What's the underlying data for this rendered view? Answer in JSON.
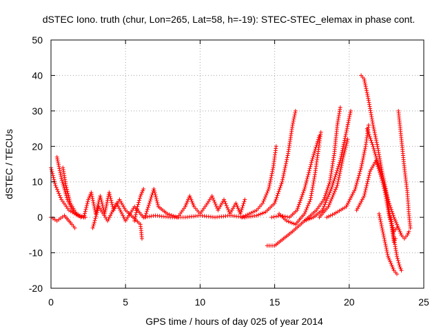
{
  "chart_data": {
    "type": "scatter",
    "title": "dSTEC Iono. truth (chur, Lon=265, Lat=58, h=-19): STEC-STEC_elemax in phase cont.",
    "xlabel": "GPS time / hours of day 025 of year 2014",
    "ylabel": "dSTEC  / TECUs",
    "xlim": [
      0,
      25
    ],
    "ylim": [
      -20,
      50
    ],
    "xticks": [
      "0",
      "5",
      "10",
      "15",
      "20",
      "25"
    ],
    "yticks": [
      "-20",
      "-10",
      "0",
      "10",
      "20",
      "30",
      "40",
      "50"
    ],
    "grid": true,
    "marker": "+",
    "colors": {
      "series": "#ff0000",
      "grid": "#a0a0a0",
      "axis": "#000000"
    },
    "arcs": [
      {
        "points": [
          [
            0.0,
            14
          ],
          [
            0.3,
            9
          ],
          [
            0.7,
            5
          ],
          [
            1.2,
            2
          ],
          [
            1.8,
            0.5
          ],
          [
            2.3,
            0
          ]
        ]
      },
      {
        "points": [
          [
            0.4,
            17
          ],
          [
            0.7,
            11
          ],
          [
            1.1,
            5
          ],
          [
            1.5,
            1.5
          ],
          [
            2.0,
            0
          ]
        ]
      },
      {
        "points": [
          [
            0.8,
            14
          ],
          [
            1.0,
            9
          ],
          [
            1.3,
            4
          ],
          [
            1.7,
            1
          ],
          [
            2.2,
            0
          ]
        ]
      },
      {
        "points": [
          [
            0.0,
            0
          ],
          [
            0.4,
            -1
          ],
          [
            0.9,
            0.5
          ],
          [
            1.4,
            -2
          ],
          [
            1.6,
            -3
          ]
        ]
      },
      {
        "points": [
          [
            2.2,
            0
          ],
          [
            2.5,
            5
          ],
          [
            2.7,
            7
          ],
          [
            3.0,
            1
          ],
          [
            3.3,
            6
          ],
          [
            3.6,
            1
          ],
          [
            3.9,
            7
          ],
          [
            4.2,
            2
          ],
          [
            4.6,
            5
          ],
          [
            5.0,
            2
          ],
          [
            5.5,
            0
          ],
          [
            6.0,
            -2
          ],
          [
            6.1,
            -6
          ]
        ]
      },
      {
        "points": [
          [
            2.8,
            -3
          ],
          [
            3.2,
            3
          ],
          [
            3.8,
            -1
          ],
          [
            4.4,
            4
          ],
          [
            5.0,
            -1
          ],
          [
            5.6,
            3
          ],
          [
            6.2,
            0
          ]
        ]
      },
      {
        "points": [
          [
            5.6,
            -1
          ],
          [
            5.8,
            3
          ],
          [
            6.0,
            6
          ],
          [
            6.2,
            8
          ]
        ]
      },
      {
        "points": [
          [
            6.3,
            0
          ],
          [
            6.6,
            4
          ],
          [
            6.9,
            8
          ],
          [
            7.2,
            3
          ],
          [
            7.8,
            1
          ],
          [
            8.5,
            0
          ],
          [
            9.0,
            3
          ],
          [
            9.3,
            6
          ],
          [
            9.6,
            3
          ],
          [
            10.0,
            1
          ]
        ]
      },
      {
        "points": [
          [
            6.2,
            0
          ],
          [
            7.0,
            0.5
          ],
          [
            8.0,
            0
          ],
          [
            9.0,
            0
          ],
          [
            10.0,
            0.5
          ],
          [
            11.0,
            0
          ],
          [
            12.0,
            0.5
          ],
          [
            13.0,
            0
          ]
        ]
      },
      {
        "points": [
          [
            10.0,
            1
          ],
          [
            10.5,
            4
          ],
          [
            10.8,
            6
          ],
          [
            11.2,
            2
          ],
          [
            11.6,
            5
          ],
          [
            12.0,
            1
          ],
          [
            12.4,
            4
          ],
          [
            12.7,
            1
          ],
          [
            13.0,
            5
          ]
        ]
      },
      {
        "points": [
          [
            12.8,
            0
          ],
          [
            13.3,
            1
          ],
          [
            13.8,
            2
          ],
          [
            14.2,
            4
          ],
          [
            14.6,
            8
          ],
          [
            14.9,
            14
          ],
          [
            15.1,
            20
          ]
        ]
      },
      {
        "points": [
          [
            13.0,
            0
          ],
          [
            13.8,
            0.5
          ],
          [
            14.4,
            1.5
          ],
          [
            15.0,
            4
          ],
          [
            15.5,
            10
          ],
          [
            15.9,
            18
          ],
          [
            16.2,
            26
          ],
          [
            16.4,
            30
          ]
        ]
      },
      {
        "points": [
          [
            14.5,
            -8
          ],
          [
            15.0,
            -8
          ],
          [
            15.6,
            -6
          ],
          [
            16.2,
            -4
          ],
          [
            17.0,
            -1
          ],
          [
            17.8,
            2
          ],
          [
            18.3,
            5
          ],
          [
            18.7,
            10
          ],
          [
            19.0,
            18
          ],
          [
            19.2,
            26
          ],
          [
            19.4,
            31
          ]
        ]
      },
      {
        "points": [
          [
            15.3,
            1
          ],
          [
            15.8,
            -1
          ],
          [
            16.4,
            -2
          ],
          [
            17.0,
            1
          ],
          [
            17.4,
            5
          ],
          [
            17.7,
            12
          ],
          [
            17.9,
            18
          ],
          [
            18.1,
            24
          ]
        ]
      },
      {
        "points": [
          [
            14.8,
            0
          ],
          [
            15.4,
            0.5
          ],
          [
            16.0,
            0
          ],
          [
            16.5,
            2
          ],
          [
            17.0,
            8
          ],
          [
            17.5,
            16
          ],
          [
            18.0,
            23
          ]
        ]
      },
      {
        "points": [
          [
            17.0,
            -1
          ],
          [
            17.6,
            0
          ],
          [
            18.2,
            2
          ],
          [
            18.8,
            8
          ],
          [
            19.4,
            16
          ],
          [
            19.8,
            24
          ],
          [
            20.1,
            30
          ]
        ]
      },
      {
        "points": [
          [
            18.0,
            0
          ],
          [
            18.6,
            3
          ],
          [
            19.2,
            9
          ],
          [
            19.6,
            17
          ],
          [
            19.9,
            22
          ]
        ]
      },
      {
        "points": [
          [
            18.5,
            0
          ],
          [
            19.0,
            1
          ],
          [
            19.8,
            3
          ],
          [
            20.4,
            8
          ],
          [
            20.8,
            14
          ],
          [
            21.1,
            20
          ],
          [
            21.3,
            26
          ]
        ]
      },
      {
        "points": [
          [
            20.8,
            40
          ],
          [
            21.0,
            39
          ],
          [
            21.3,
            33
          ],
          [
            21.6,
            26
          ],
          [
            21.9,
            20
          ],
          [
            22.2,
            13
          ],
          [
            22.5,
            7
          ],
          [
            22.7,
            1
          ],
          [
            22.9,
            -4
          ],
          [
            23.0,
            -7
          ],
          [
            23.1,
            -6
          ]
        ]
      },
      {
        "points": [
          [
            21.2,
            25
          ],
          [
            21.6,
            20
          ],
          [
            22.0,
            14
          ],
          [
            22.4,
            7
          ],
          [
            22.7,
            0
          ],
          [
            23.0,
            -4
          ],
          [
            23.2,
            -3
          ]
        ]
      },
      {
        "points": [
          [
            20.5,
            2
          ],
          [
            21.0,
            6
          ],
          [
            21.4,
            13
          ],
          [
            21.8,
            16
          ],
          [
            22.2,
            11
          ],
          [
            22.6,
            5
          ],
          [
            23.0,
            0
          ],
          [
            23.3,
            -3
          ],
          [
            23.5,
            -5
          ]
        ]
      },
      {
        "points": [
          [
            22.8,
            0
          ],
          [
            23.0,
            -6
          ],
          [
            23.2,
            -11
          ],
          [
            23.4,
            -14
          ],
          [
            23.5,
            -15
          ]
        ]
      },
      {
        "points": [
          [
            22.0,
            1
          ],
          [
            22.2,
            -3
          ],
          [
            22.4,
            -7
          ],
          [
            22.6,
            -11
          ],
          [
            22.8,
            -13
          ],
          [
            23.0,
            -15
          ],
          [
            23.2,
            -16
          ]
        ]
      },
      {
        "points": [
          [
            23.3,
            30
          ],
          [
            23.5,
            22
          ],
          [
            23.7,
            14
          ],
          [
            23.9,
            7
          ],
          [
            24.0,
            1
          ],
          [
            24.1,
            -3
          ]
        ]
      },
      {
        "points": [
          [
            23.5,
            -5
          ],
          [
            23.7,
            -6
          ],
          [
            23.9,
            -5
          ],
          [
            24.0,
            -4
          ]
        ]
      }
    ]
  }
}
